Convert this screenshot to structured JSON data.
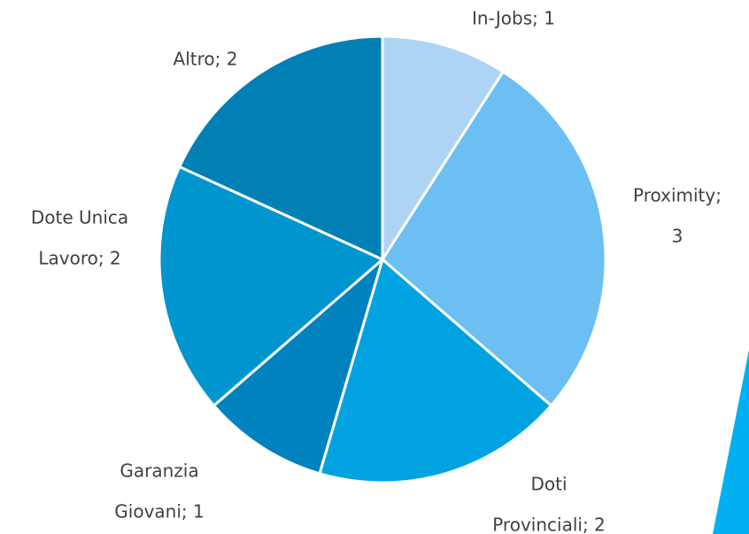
{
  "chart_data": {
    "type": "pie",
    "categories": [
      "In-Jobs",
      "Proximity",
      "Doti Provinciali",
      "Garanzia Giovani",
      "Dote Unica Lavoro",
      "Altro"
    ],
    "values": [
      1,
      3,
      2,
      1,
      2,
      2
    ],
    "value_labels": [
      [
        "In-Jobs; 1"
      ],
      [
        "Proximity;",
        "3"
      ],
      [
        "Doti",
        "Provinciali; 2"
      ],
      [
        "Garanzia",
        "Giovani; 1"
      ],
      [
        "Dote Unica",
        "Lavoro; 2"
      ],
      [
        "Altro; 2"
      ]
    ],
    "colors": [
      "#aed4f5",
      "#6bbff3",
      "#00a3e0",
      "#0082be",
      "#0095cf",
      "#0080b4"
    ]
  }
}
